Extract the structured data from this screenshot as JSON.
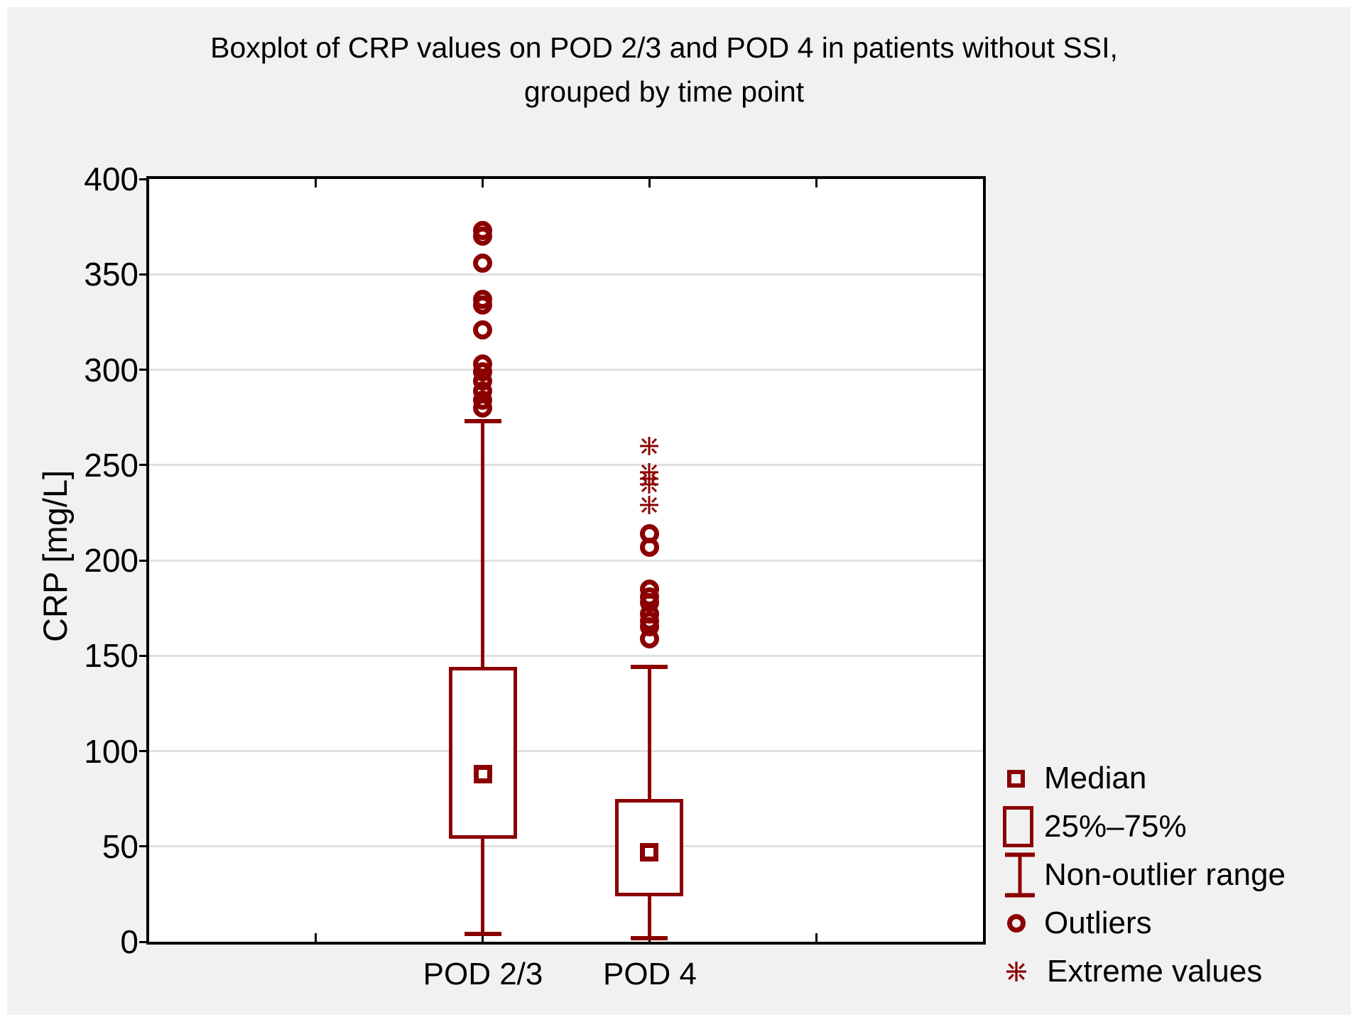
{
  "figure": {
    "title_line1": "Boxplot of CRP values on POD 2/3 and POD 4 in patients without SSI,",
    "title_line2": "grouped by time point"
  },
  "chart_data": {
    "type": "boxplot",
    "title": "Boxplot of CRP values on POD 2/3 and POD 4 in patients without SSI, grouped by time point",
    "xlabel": "",
    "ylabel": "CRP [mg/L]",
    "ylim": [
      0,
      400
    ],
    "y_ticks": [
      0,
      50,
      100,
      150,
      200,
      250,
      300,
      350,
      400
    ],
    "grid": "horizontal light-gray gridlines every 50 mg/L",
    "categories": [
      "POD 2/3",
      "POD 4"
    ],
    "series": [
      {
        "category": "POD 2/3",
        "median": 88,
        "q1": 54,
        "q3": 144,
        "whisker_low": 4,
        "whisker_high": 273,
        "outliers": [
          280,
          284,
          289,
          294,
          299,
          303,
          321,
          334,
          337,
          356,
          370,
          373
        ],
        "extremes": []
      },
      {
        "category": "POD 4",
        "median": 47,
        "q1": 24,
        "q3": 75,
        "whisker_low": 2,
        "whisker_high": 144,
        "outliers": [
          159,
          165,
          168,
          172,
          178,
          181,
          185,
          207,
          214
        ],
        "extremes": [
          229,
          240,
          243,
          246,
          260
        ]
      }
    ],
    "colors": {
      "box": "#8B0000",
      "axis": "#000000",
      "gridline": "#e0e0e0",
      "panel_bg": "#f1f1f1",
      "plot_bg": "#ffffff"
    },
    "legend": {
      "position": "right-bottom",
      "items": [
        {
          "symbol": "median-square",
          "label": "Median"
        },
        {
          "symbol": "iqr-box",
          "label": "25%–75%"
        },
        {
          "symbol": "whisker-range",
          "label": "Non-outlier range"
        },
        {
          "symbol": "outlier-circle",
          "label": "Outliers"
        },
        {
          "symbol": "extreme-asterisk",
          "label": "Extreme values"
        }
      ]
    }
  }
}
